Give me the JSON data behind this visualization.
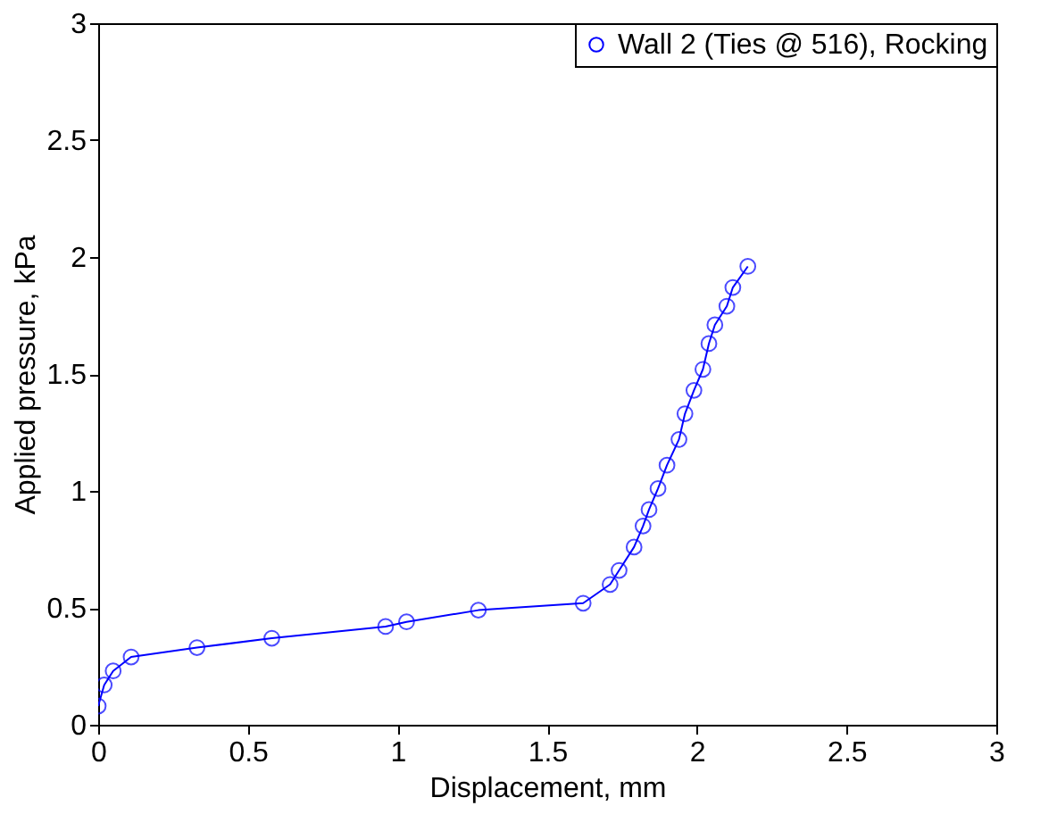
{
  "chart_data": {
    "type": "line",
    "xlabel": "Displacement, mm",
    "ylabel": "Applied pressure, kPa",
    "xlim": [
      0,
      3
    ],
    "ylim": [
      0,
      3
    ],
    "xticks": [
      0,
      0.5,
      1,
      1.5,
      2,
      2.5,
      3
    ],
    "yticks": [
      0,
      0.5,
      1,
      1.5,
      2,
      2.5,
      3
    ],
    "grid": false,
    "legend": "top right",
    "marker": "circle",
    "line_style": "solid",
    "series": [
      {
        "name": "Wall 2 (Ties @ 516), Rocking",
        "color": "#0000ff",
        "x": [
          0,
          0.02,
          0.05,
          0.11,
          0.33,
          0.58,
          0.96,
          1.03,
          1.27,
          1.62,
          1.71,
          1.74,
          1.79,
          1.82,
          1.84,
          1.87,
          1.9,
          1.94,
          1.96,
          1.99,
          2.02,
          2.04,
          2.06,
          2.1,
          2.12,
          2.17
        ],
        "values": [
          0.08,
          0.17,
          0.23,
          0.29,
          0.33,
          0.37,
          0.42,
          0.44,
          0.49,
          0.52,
          0.6,
          0.66,
          0.76,
          0.85,
          0.92,
          1.01,
          1.11,
          1.22,
          1.33,
          1.43,
          1.52,
          1.63,
          1.71,
          1.79,
          1.87,
          1.96
        ]
      }
    ]
  }
}
